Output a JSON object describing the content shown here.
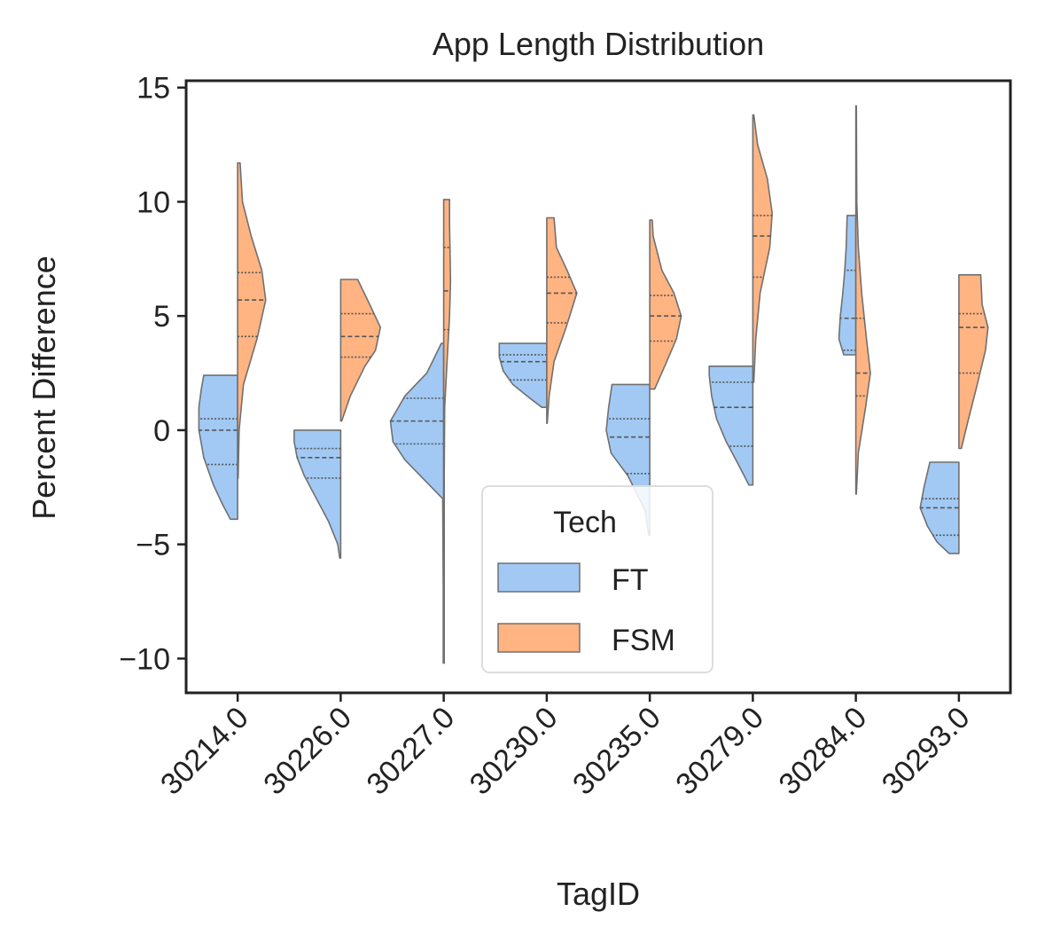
{
  "chart_data": {
    "type": "violin",
    "title": "App Length Distribution",
    "xlabel": "TagID",
    "ylabel": "Percent Difference",
    "categories": [
      "30214.0",
      "30226.0",
      "30227.0",
      "30230.0",
      "30235.0",
      "30279.0",
      "30284.0",
      "30293.0"
    ],
    "ylim": [
      -11.5,
      15.3
    ],
    "yticks": [
      -10,
      -5,
      0,
      5,
      10,
      15
    ],
    "ytick_labels": [
      "−10",
      "−5",
      "0",
      "5",
      "10",
      "15"
    ],
    "split": true,
    "inner": "quartile",
    "legend": {
      "title": "Tech",
      "position": "lower center"
    },
    "series": [
      {
        "name": "FT",
        "color": "#a1c9f4",
        "side": "left",
        "violins": [
          {
            "min": -3.9,
            "max": 2.4,
            "q1": -1.5,
            "median": 0.0,
            "q3": 0.5,
            "profile": [
              [
                -3.9,
                0.15
              ],
              [
                -3.3,
                0.3
              ],
              [
                -2.4,
                0.5
              ],
              [
                -1.2,
                0.7
              ],
              [
                0,
                0.8
              ],
              [
                1,
                0.8
              ],
              [
                1.8,
                0.75
              ],
              [
                2.4,
                0.7
              ]
            ]
          },
          {
            "min": -5.6,
            "max": 0.0,
            "q1": -2.1,
            "median": -1.2,
            "q3": -0.8,
            "profile": [
              [
                -5.6,
                0.02
              ],
              [
                -5,
                0.06
              ],
              [
                -4,
                0.25
              ],
              [
                -3,
                0.5
              ],
              [
                -2,
                0.75
              ],
              [
                -1.2,
                0.9
              ],
              [
                -0.5,
                0.96
              ],
              [
                0,
                0.96
              ]
            ]
          },
          {
            "min": -10.2,
            "max": 3.8,
            "q1": -0.6,
            "median": 0.4,
            "q3": 1.4,
            "profile": [
              [
                -10.2,
                0.01
              ],
              [
                -7,
                0.01
              ],
              [
                -3,
                0.02
              ],
              [
                -1.3,
                0.8
              ],
              [
                -0.5,
                1.05
              ],
              [
                0.4,
                1.1
              ],
              [
                1.5,
                0.8
              ],
              [
                2.5,
                0.35
              ],
              [
                3.8,
                0.05
              ]
            ]
          },
          {
            "min": 1.0,
            "max": 3.8,
            "q1": 2.2,
            "median": 3.0,
            "q3": 3.3,
            "profile": [
              [
                1,
                0.1
              ],
              [
                1.4,
                0.35
              ],
              [
                2,
                0.7
              ],
              [
                2.6,
                0.9
              ],
              [
                3.2,
                0.98
              ],
              [
                3.8,
                0.98
              ]
            ]
          },
          {
            "min": -4.6,
            "max": 2.0,
            "q1": -1.9,
            "median": -0.3,
            "q3": 0.5,
            "profile": [
              [
                -4.6,
                0.02
              ],
              [
                -3.5,
                0.1
              ],
              [
                -2,
                0.45
              ],
              [
                -1,
                0.8
              ],
              [
                0,
                0.9
              ],
              [
                1,
                0.85
              ],
              [
                2,
                0.78
              ]
            ]
          },
          {
            "min": -2.4,
            "max": 2.8,
            "q1": -0.7,
            "median": 1.0,
            "q3": 2.1,
            "profile": [
              [
                -2.4,
                0.08
              ],
              [
                -1.5,
                0.3
              ],
              [
                -0.5,
                0.55
              ],
              [
                0.5,
                0.75
              ],
              [
                1.5,
                0.85
              ],
              [
                2.4,
                0.9
              ],
              [
                2.8,
                0.9
              ]
            ]
          },
          {
            "min": 3.3,
            "max": 9.4,
            "q1": 3.5,
            "median": 4.9,
            "q3": 7.0,
            "profile": [
              [
                3.3,
                0.25
              ],
              [
                4,
                0.35
              ],
              [
                5,
                0.32
              ],
              [
                6,
                0.27
              ],
              [
                7,
                0.23
              ],
              [
                8,
                0.2
              ],
              [
                9.4,
                0.18
              ]
            ]
          },
          {
            "min": -5.4,
            "max": -1.4,
            "q1": -4.6,
            "median": -3.4,
            "q3": -3.0,
            "profile": [
              [
                -5.4,
                0.2
              ],
              [
                -4.9,
                0.45
              ],
              [
                -4.2,
                0.65
              ],
              [
                -3.4,
                0.8
              ],
              [
                -2.5,
                0.72
              ],
              [
                -1.4,
                0.6
              ]
            ]
          }
        ]
      },
      {
        "name": "FSM",
        "color": "#ffb482",
        "side": "right",
        "violins": [
          {
            "min": -2.1,
            "max": 11.7,
            "q1": 4.1,
            "median": 5.7,
            "q3": 6.9,
            "profile": [
              [
                -2.1,
                0.01
              ],
              [
                0,
                0.03
              ],
              [
                2,
                0.12
              ],
              [
                4,
                0.4
              ],
              [
                5.7,
                0.58
              ],
              [
                7,
                0.5
              ],
              [
                8.5,
                0.28
              ],
              [
                10,
                0.1
              ],
              [
                11.7,
                0.05
              ]
            ]
          },
          {
            "min": 0.4,
            "max": 6.6,
            "q1": 3.2,
            "median": 4.1,
            "q3": 5.1,
            "profile": [
              [
                0.4,
                0.02
              ],
              [
                1.5,
                0.2
              ],
              [
                2.8,
                0.5
              ],
              [
                3.5,
                0.72
              ],
              [
                4.5,
                0.82
              ],
              [
                5.5,
                0.6
              ],
              [
                6.6,
                0.35
              ]
            ]
          },
          {
            "min": -10.2,
            "max": 10.1,
            "q1": 4.4,
            "median": 6.1,
            "q3": 8.0,
            "profile": [
              [
                -10.2,
                0.01
              ],
              [
                -2,
                0.01
              ],
              [
                1,
                0.02
              ],
              [
                3,
                0.07
              ],
              [
                5,
                0.12
              ],
              [
                6.5,
                0.14
              ],
              [
                8,
                0.13
              ],
              [
                9,
                0.12
              ],
              [
                10.1,
                0.12
              ]
            ]
          },
          {
            "min": 0.3,
            "max": 9.3,
            "q1": 4.7,
            "median": 6.0,
            "q3": 6.7,
            "profile": [
              [
                0.3,
                0.01
              ],
              [
                1.5,
                0.05
              ],
              [
                3,
                0.15
              ],
              [
                4.5,
                0.4
              ],
              [
                6,
                0.62
              ],
              [
                7,
                0.42
              ],
              [
                8,
                0.2
              ],
              [
                9.3,
                0.15
              ]
            ]
          },
          {
            "min": 1.8,
            "max": 9.2,
            "q1": 3.9,
            "median": 5.0,
            "q3": 5.9,
            "profile": [
              [
                1.8,
                0.1
              ],
              [
                3,
                0.35
              ],
              [
                4,
                0.55
              ],
              [
                5,
                0.65
              ],
              [
                6,
                0.5
              ],
              [
                7,
                0.25
              ],
              [
                8.5,
                0.07
              ],
              [
                9.2,
                0.05
              ]
            ]
          },
          {
            "min": 2.1,
            "max": 13.8,
            "q1": 6.7,
            "median": 8.5,
            "q3": 9.4,
            "profile": [
              [
                2.1,
                0.02
              ],
              [
                4,
                0.06
              ],
              [
                6,
                0.15
              ],
              [
                8,
                0.35
              ],
              [
                9.5,
                0.4
              ],
              [
                11,
                0.3
              ],
              [
                12.5,
                0.1
              ],
              [
                13.8,
                0.02
              ]
            ]
          },
          {
            "min": -2.8,
            "max": 14.2,
            "q1": 1.5,
            "median": 2.5,
            "q3": 4.9,
            "profile": [
              [
                -2.8,
                0.01
              ],
              [
                -1,
                0.05
              ],
              [
                1,
                0.2
              ],
              [
                2.5,
                0.3
              ],
              [
                4,
                0.22
              ],
              [
                6,
                0.12
              ],
              [
                8,
                0.05
              ],
              [
                10,
                0.02
              ],
              [
                14.2,
                0.01
              ]
            ]
          },
          {
            "min": -0.8,
            "max": 6.8,
            "q1": 2.5,
            "median": 4.5,
            "q3": 5.1,
            "profile": [
              [
                -0.8,
                0.05
              ],
              [
                0.5,
                0.2
              ],
              [
                2,
                0.38
              ],
              [
                3.5,
                0.55
              ],
              [
                4.5,
                0.6
              ],
              [
                5.5,
                0.48
              ],
              [
                6.8,
                0.45
              ]
            ]
          }
        ]
      }
    ]
  }
}
